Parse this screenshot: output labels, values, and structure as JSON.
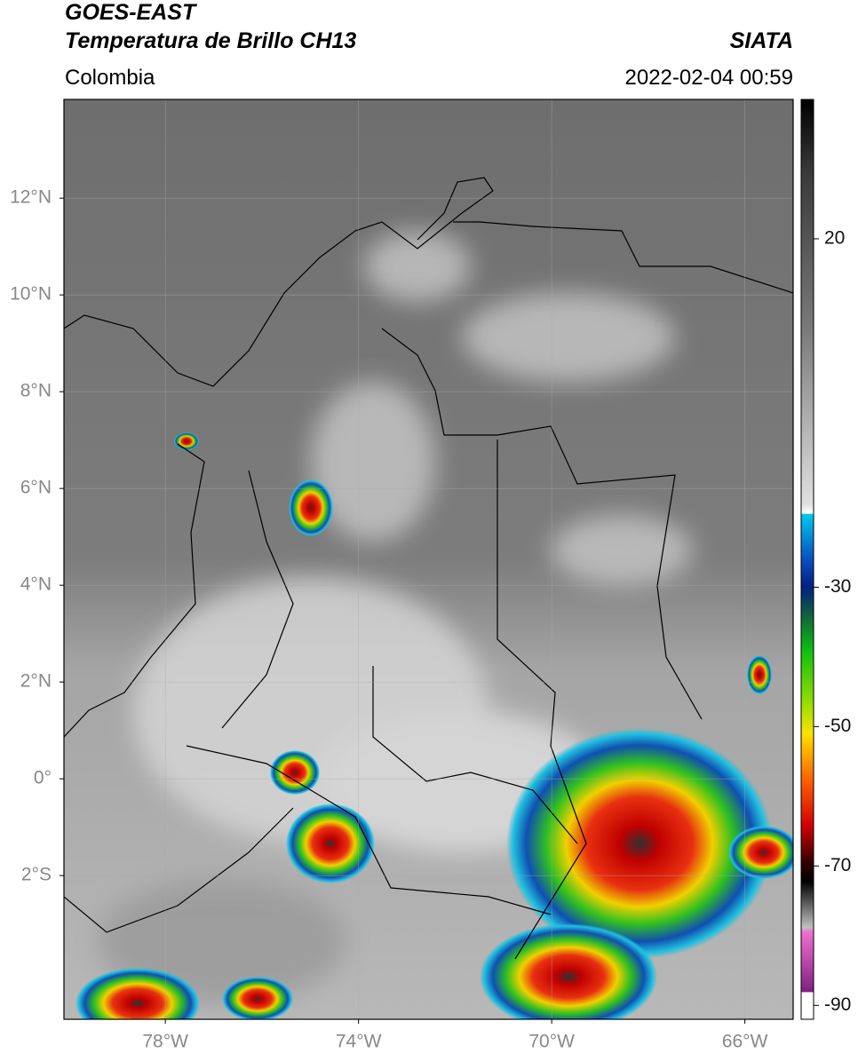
{
  "header": {
    "title_line1": "GOES-EAST",
    "title_line2": "Temperatura de Brillo CH13",
    "region": "Colombia",
    "source": "SIATA",
    "datetime": "2022-02-04 00:59"
  },
  "map": {
    "lonlim": [
      -80.1,
      -65.0
    ],
    "latlim": [
      -4.97,
      14.04
    ],
    "lat_ticks": [
      {
        "value": 12,
        "label": "12°N"
      },
      {
        "value": 10,
        "label": "10°N"
      },
      {
        "value": 8,
        "label": "8°N"
      },
      {
        "value": 6,
        "label": "6°N"
      },
      {
        "value": 4,
        "label": "4°N"
      },
      {
        "value": 2,
        "label": "2°N"
      },
      {
        "value": 0,
        "label": "0°"
      },
      {
        "value": -2,
        "label": "2°S"
      }
    ],
    "lon_ticks": [
      {
        "value": -78,
        "label": "78°W"
      },
      {
        "value": -74,
        "label": "74°W"
      },
      {
        "value": -70,
        "label": "70°W"
      },
      {
        "value": -66,
        "label": "66°W"
      }
    ]
  },
  "colorbar": {
    "lim": [
      -92,
      40
    ],
    "ticks": [
      20,
      -30,
      -50,
      -70,
      -90
    ]
  }
}
